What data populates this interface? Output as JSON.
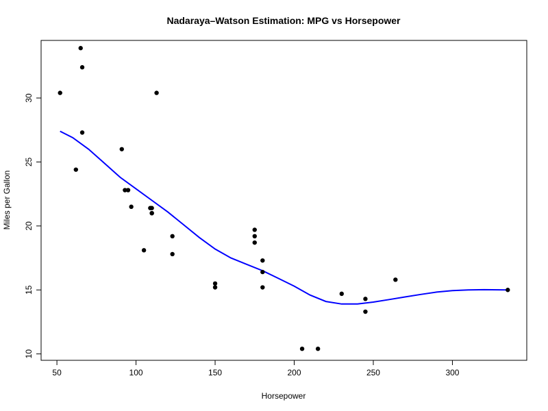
{
  "chart_data": {
    "type": "scatter",
    "title": "Nadaraya–Watson Estimation: MPG vs Horsepower",
    "xlabel": "Horsepower",
    "ylabel": "Miles per Gallon",
    "xlim": [
      40,
      347
    ],
    "ylim": [
      9.5,
      34.5
    ],
    "xticks": [
      50,
      100,
      150,
      200,
      250,
      300
    ],
    "yticks": [
      10,
      15,
      20,
      25,
      30
    ],
    "grid": false,
    "point_color": "#000000",
    "curve_color": "#0000ff",
    "points": [
      {
        "x": 52,
        "y": 30.4
      },
      {
        "x": 62,
        "y": 24.4
      },
      {
        "x": 65,
        "y": 33.9
      },
      {
        "x": 66,
        "y": 32.4
      },
      {
        "x": 66,
        "y": 27.3
      },
      {
        "x": 91,
        "y": 26.0
      },
      {
        "x": 93,
        "y": 22.8
      },
      {
        "x": 95,
        "y": 22.8
      },
      {
        "x": 97,
        "y": 21.5
      },
      {
        "x": 105,
        "y": 18.1
      },
      {
        "x": 109,
        "y": 21.4
      },
      {
        "x": 110,
        "y": 21.0
      },
      {
        "x": 110,
        "y": 21.0
      },
      {
        "x": 110,
        "y": 21.4
      },
      {
        "x": 113,
        "y": 30.4
      },
      {
        "x": 123,
        "y": 19.2
      },
      {
        "x": 123,
        "y": 17.8
      },
      {
        "x": 150,
        "y": 15.5
      },
      {
        "x": 150,
        "y": 15.2
      },
      {
        "x": 175,
        "y": 19.7
      },
      {
        "x": 175,
        "y": 19.2
      },
      {
        "x": 175,
        "y": 18.7
      },
      {
        "x": 180,
        "y": 17.3
      },
      {
        "x": 180,
        "y": 16.4
      },
      {
        "x": 180,
        "y": 15.2
      },
      {
        "x": 205,
        "y": 10.4
      },
      {
        "x": 215,
        "y": 10.4
      },
      {
        "x": 230,
        "y": 14.7
      },
      {
        "x": 245,
        "y": 14.3
      },
      {
        "x": 245,
        "y": 13.3
      },
      {
        "x": 264,
        "y": 15.8
      },
      {
        "x": 335,
        "y": 15.0
      }
    ],
    "curve": [
      {
        "x": 52,
        "y": 27.4
      },
      {
        "x": 60,
        "y": 26.9
      },
      {
        "x": 70,
        "y": 26.0
      },
      {
        "x": 80,
        "y": 24.9
      },
      {
        "x": 90,
        "y": 23.8
      },
      {
        "x": 100,
        "y": 22.9
      },
      {
        "x": 110,
        "y": 22.0
      },
      {
        "x": 120,
        "y": 21.1
      },
      {
        "x": 130,
        "y": 20.1
      },
      {
        "x": 140,
        "y": 19.1
      },
      {
        "x": 150,
        "y": 18.2
      },
      {
        "x": 160,
        "y": 17.5
      },
      {
        "x": 170,
        "y": 17.0
      },
      {
        "x": 180,
        "y": 16.5
      },
      {
        "x": 190,
        "y": 15.9
      },
      {
        "x": 200,
        "y": 15.3
      },
      {
        "x": 210,
        "y": 14.6
      },
      {
        "x": 220,
        "y": 14.1
      },
      {
        "x": 230,
        "y": 13.9
      },
      {
        "x": 240,
        "y": 13.9
      },
      {
        "x": 250,
        "y": 14.05
      },
      {
        "x": 260,
        "y": 14.25
      },
      {
        "x": 270,
        "y": 14.45
      },
      {
        "x": 280,
        "y": 14.65
      },
      {
        "x": 290,
        "y": 14.83
      },
      {
        "x": 300,
        "y": 14.95
      },
      {
        "x": 310,
        "y": 15.0
      },
      {
        "x": 320,
        "y": 15.02
      },
      {
        "x": 335,
        "y": 15.0
      }
    ]
  }
}
